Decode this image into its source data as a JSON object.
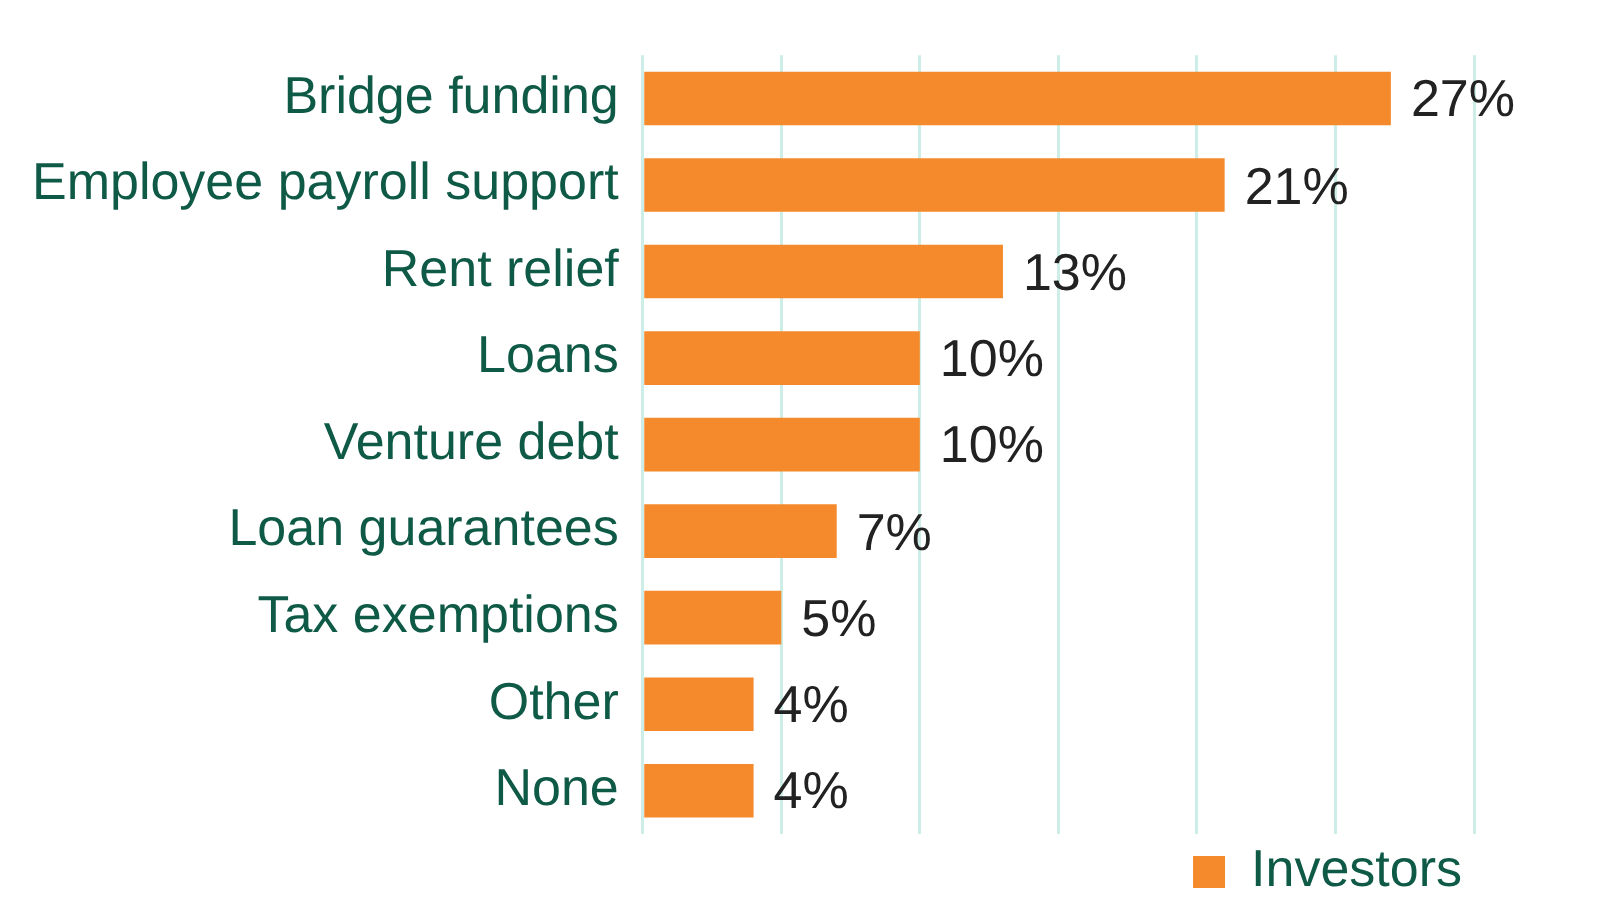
{
  "chart_data": {
    "type": "bar",
    "orientation": "horizontal",
    "categories": [
      "Bridge funding",
      "Employee payroll support",
      "Rent relief",
      "Loans",
      "Venture debt",
      "Loan guarantees",
      "Tax exemptions",
      "Other",
      "None"
    ],
    "series": [
      {
        "name": "Investors",
        "color": "#f58a2c",
        "values": [
          27,
          21,
          13,
          10,
          10,
          7,
          5,
          4,
          4
        ],
        "value_labels": [
          "27%",
          "21%",
          "13%",
          "10%",
          "10%",
          "7%",
          "5%",
          "4%",
          "4%"
        ]
      }
    ],
    "grid": "x",
    "legend": "bottom right",
    "tick_labels": "y"
  }
}
